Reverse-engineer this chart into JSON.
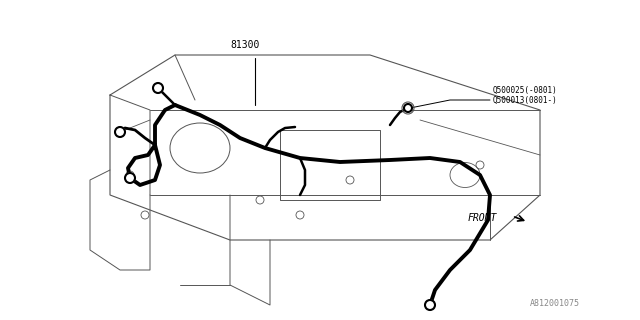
{
  "background_color": "#ffffff",
  "line_color": "#000000",
  "thin_line_color": "#555555",
  "thick_line_color": "#000000",
  "label_81300": "81300",
  "label_q1": "Q500025(-0801)",
  "label_q2": "Q500013(0801-)",
  "label_front": "FRONT",
  "label_part_num": "A812001075",
  "fig_width": 6.4,
  "fig_height": 3.2,
  "dpi": 100
}
